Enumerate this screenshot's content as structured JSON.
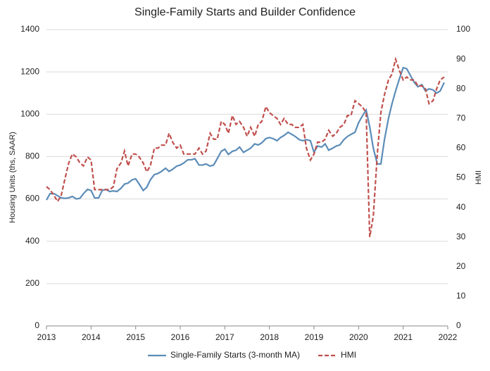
{
  "chart_data": {
    "type": "line",
    "title": "Single-Family Starts and Builder Confidence",
    "y_label": "Housing Units (ths, SAAR)",
    "y2_label": "HMI",
    "x": [
      2013.0,
      2013.08,
      2013.17,
      2013.25,
      2013.33,
      2013.42,
      2013.5,
      2013.58,
      2013.67,
      2013.75,
      2013.83,
      2013.92,
      2014.0,
      2014.08,
      2014.17,
      2014.25,
      2014.33,
      2014.42,
      2014.5,
      2014.58,
      2014.67,
      2014.75,
      2014.83,
      2014.92,
      2015.0,
      2015.08,
      2015.17,
      2015.25,
      2015.33,
      2015.42,
      2015.5,
      2015.58,
      2015.67,
      2015.75,
      2015.83,
      2015.92,
      2016.0,
      2016.08,
      2016.17,
      2016.25,
      2016.33,
      2016.42,
      2016.5,
      2016.58,
      2016.67,
      2016.75,
      2016.83,
      2016.92,
      2017.0,
      2017.08,
      2017.17,
      2017.25,
      2017.33,
      2017.42,
      2017.5,
      2017.58,
      2017.67,
      2017.75,
      2017.83,
      2017.92,
      2018.0,
      2018.08,
      2018.17,
      2018.25,
      2018.33,
      2018.42,
      2018.5,
      2018.58,
      2018.67,
      2018.75,
      2018.83,
      2018.92,
      2019.0,
      2019.08,
      2019.17,
      2019.25,
      2019.33,
      2019.42,
      2019.5,
      2019.58,
      2019.67,
      2019.75,
      2019.83,
      2019.92,
      2020.0,
      2020.08,
      2020.17,
      2020.25,
      2020.33,
      2020.42,
      2020.5,
      2020.58,
      2020.67,
      2020.75,
      2020.83,
      2020.92,
      2021.0,
      2021.08,
      2021.17,
      2021.25,
      2021.33,
      2021.42,
      2021.5,
      2021.58,
      2021.67,
      2021.75,
      2021.83,
      2021.92
    ],
    "series": [
      {
        "name": "Single-Family Starts (3-month MA)",
        "color": "#5b8cb8",
        "dashed": false,
        "values": [
          595,
          625,
          625,
          615,
          605,
          603,
          605,
          612,
          600,
          603,
          625,
          645,
          640,
          605,
          605,
          640,
          645,
          635,
          638,
          635,
          650,
          670,
          675,
          690,
          695,
          670,
          640,
          655,
          690,
          715,
          720,
          730,
          745,
          730,
          740,
          755,
          760,
          770,
          785,
          785,
          790,
          760,
          760,
          765,
          755,
          760,
          790,
          825,
          835,
          810,
          825,
          830,
          845,
          820,
          830,
          840,
          860,
          855,
          865,
          885,
          890,
          885,
          875,
          890,
          900,
          915,
          905,
          895,
          880,
          875,
          880,
          875,
          820,
          850,
          845,
          860,
          830,
          840,
          850,
          855,
          880,
          895,
          905,
          915,
          960,
          990,
          1020,
          940,
          840,
          765,
          765,
          880,
          980,
          1050,
          1110,
          1170,
          1220,
          1215,
          1180,
          1150,
          1130,
          1140,
          1110,
          1120,
          1115,
          1100,
          1110,
          1150
        ]
      },
      {
        "name": "HMI",
        "color": "#c0504d",
        "dashed": true,
        "axis": "y2",
        "values": [
          47,
          46,
          44,
          42,
          44,
          50,
          55,
          58,
          57,
          55,
          54,
          57,
          56,
          46,
          46,
          46,
          46,
          46,
          47,
          53,
          55,
          59,
          54,
          58,
          58,
          57,
          55,
          52,
          54,
          60,
          60,
          61,
          61,
          65,
          62,
          60,
          61,
          58,
          58,
          58,
          58,
          60,
          58,
          59,
          65,
          63,
          63,
          69,
          68,
          65,
          71,
          68,
          69,
          67,
          64,
          67,
          64,
          68,
          69,
          74,
          72,
          71,
          70,
          68,
          70,
          68,
          68,
          67,
          67,
          68,
          60,
          56,
          58,
          62,
          62,
          63,
          66,
          64,
          65,
          67,
          68,
          71,
          71,
          76,
          75,
          74,
          72,
          30,
          37,
          58,
          72,
          78,
          83,
          85,
          90,
          86,
          83,
          84,
          83,
          83,
          81,
          81,
          80,
          75,
          76,
          80,
          83,
          84
        ]
      }
    ],
    "xlim": [
      2013,
      2022
    ],
    "xticks": [
      2013,
      2014,
      2015,
      2016,
      2017,
      2018,
      2019,
      2020,
      2021,
      2022
    ],
    "ylim": [
      0,
      1400
    ],
    "yticks": [
      0,
      200,
      400,
      600,
      800,
      1000,
      1200,
      1400
    ],
    "y2lim": [
      0,
      100
    ],
    "y2ticks": [
      0,
      10,
      20,
      30,
      40,
      50,
      60,
      70,
      80,
      90,
      100
    ],
    "grid": true,
    "legend": "bottom"
  }
}
